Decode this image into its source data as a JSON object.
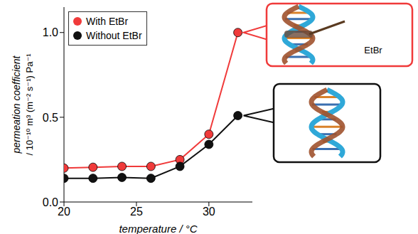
{
  "chart_data": {
    "type": "line",
    "x_label": "temperature / °C",
    "y_label": "permeation coefficient / 10⁻¹⁰ m³ (m⁻² s⁻¹) Pa⁻¹",
    "x": [
      20,
      22,
      24,
      26,
      28,
      30,
      32
    ],
    "series": [
      {
        "name": "With EtBr",
        "color": "#f03a3a",
        "marker": "circle",
        "values": [
          0.2,
          0.205,
          0.21,
          0.21,
          0.25,
          0.4,
          1.0
        ]
      },
      {
        "name": "Without EtBr",
        "color": "#111111",
        "marker": "circle",
        "values": [
          0.14,
          0.14,
          0.145,
          0.14,
          0.21,
          0.34,
          0.51
        ]
      }
    ],
    "xlim": [
      20,
      33
    ],
    "xticks": [
      20,
      25,
      30
    ],
    "ylim": [
      0,
      1.15
    ],
    "yticks": [
      {
        "value": 0,
        "label": "0.0"
      },
      {
        "value": 0.5,
        "label": "0.5"
      },
      {
        "value": 1,
        "label": "1.0"
      }
    ],
    "legend": "upper left",
    "annotations": [
      {
        "text": "EtBr",
        "series": "With EtBr"
      }
    ]
  }
}
